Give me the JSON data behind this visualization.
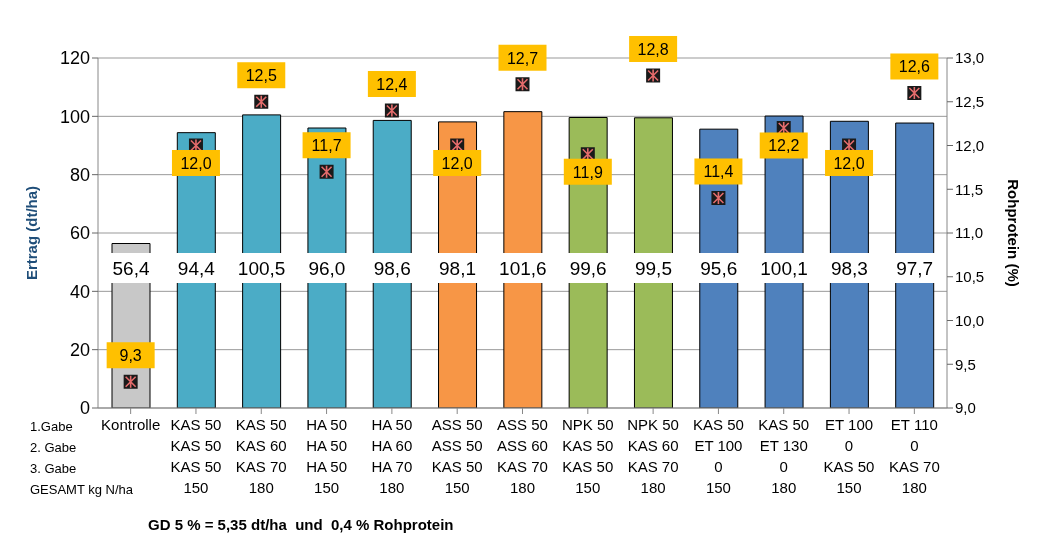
{
  "chart_data": {
    "type": "bar",
    "categories": [
      "Kontrolle",
      "KAS 50\nKAS 50\nKAS 50\n150",
      "KAS 50\nKAS 60\nKAS 70\n180",
      "HA 50\nHA 50\nHA 50\n150",
      "HA 50\nHA 60\nHA 70\n180",
      "ASS 50\nASS 50\nKAS 50\n150",
      "ASS 50\nASS 60\nKAS 70\n180",
      "NPK 50\nKAS 50\nKAS 50\n150",
      "NPK 50\nKAS 60\nKAS 70\n180",
      "KAS 50\nET 100\n0\n150",
      "KAS 50\nET 130\n0\n180",
      "ET 100\n0\nKAS 50\n150",
      "ET 110\n0\nKAS 70\n180"
    ],
    "ylabel": "Ertrag (dt/ha)",
    "y2label": "Rohprotein (%)",
    "annotations": [
      "1.Gabe",
      "2. Gabe",
      "3. Gabe",
      "GESAMT kg N/ha",
      "GD 5 % = 5,35 dt/ha  und  0,4 % Rohprotein"
    ],
    "series": [
      {
        "colors": [
          "#c8c8c8",
          "#4bacc6",
          "#4bacc6",
          "#4bacc6",
          "#4bacc6",
          "#f79646",
          "#f79646",
          "#9bbb59",
          "#9bbb59",
          "#4f81bd",
          "#4f81bd",
          "#4f81bd",
          "#4f81bd"
        ],
        "values": [
          56.4,
          94.4,
          100.5,
          96.0,
          98.6,
          98.1,
          101.6,
          99.6,
          99.5,
          95.6,
          100.1,
          98.3,
          97.7
        ],
        "value_labels": [
          "56,4",
          "94,4",
          "100,5",
          "96,0",
          "98,6",
          "98,1",
          "101,6",
          "99,6",
          "99,5",
          "95,6",
          "100,1",
          "98,3",
          "97,7"
        ]
      },
      {
        "type": "scatter",
        "axis": "y2",
        "color": "#e46c6c",
        "marker": "cross",
        "values": [
          9.3,
          12.0,
          12.5,
          11.7,
          12.4,
          12.0,
          12.7,
          11.9,
          12.8,
          11.4,
          12.2,
          12.0,
          12.6
        ],
        "value_labels": [
          "9,3",
          "12,0",
          "12,5",
          "11,7",
          "12,4",
          "12,0",
          "12,7",
          "11,9",
          "12,8",
          "11,4",
          "12,2",
          "12,0",
          "12,6"
        ]
      }
    ],
    "ylim": [
      0,
      120
    ],
    "yticks": [
      0,
      20,
      40,
      60,
      80,
      100,
      120
    ],
    "y2lim": [
      9,
      13
    ],
    "y2ticks": [
      {
        "value": 9,
        "label": "9,0"
      },
      {
        "value": 9.5,
        "label": "9,5"
      },
      {
        "value": 10,
        "label": "10,0"
      },
      {
        "value": 10.5,
        "label": "10,5"
      },
      {
        "value": 11,
        "label": "11,0"
      },
      {
        "value": 11.5,
        "label": "11,5"
      },
      {
        "value": 12,
        "label": "12,0"
      },
      {
        "value": 12.5,
        "label": "12,5"
      },
      {
        "value": 13,
        "label": "13,0"
      }
    ],
    "grid": "y",
    "legend": false
  }
}
